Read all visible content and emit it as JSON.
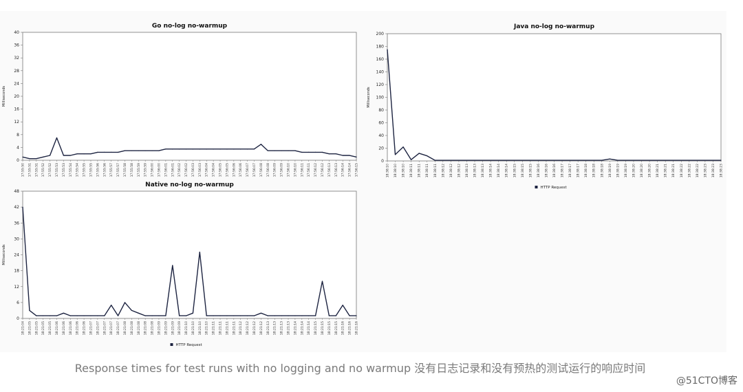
{
  "chart_data": [
    {
      "type": "line",
      "title": "Go no-log no-warmup",
      "ylabel": "Milliseconds",
      "ylim": [
        0,
        40
      ],
      "yticks": [
        0,
        4,
        8,
        12,
        16,
        20,
        24,
        28,
        32,
        36,
        40
      ],
      "x": [
        "17:55:50",
        "17:55:51",
        "17:55:51",
        "17:55:52",
        "17:55:52",
        "17:55:53",
        "17:55:53",
        "17:55:54",
        "17:55:54",
        "17:55:55",
        "17:55:55",
        "17:55:56",
        "17:55:56",
        "17:55:57",
        "17:55:57",
        "17:55:58",
        "17:55:58",
        "17:55:59",
        "17:55:59",
        "17:56:00",
        "17:56:00",
        "17:56:01",
        "17:56:01",
        "17:56:02",
        "17:56:02",
        "17:56:03",
        "17:56:03",
        "17:56:04",
        "17:56:04",
        "17:56:05",
        "17:56:05",
        "17:56:06",
        "17:56:06",
        "17:56:07",
        "17:56:07",
        "17:56:08",
        "17:56:08",
        "17:56:09",
        "17:56:09",
        "17:56:10",
        "17:56:10",
        "17:56:11",
        "17:56:11",
        "17:56:12",
        "17:56:12",
        "17:56:13",
        "17:56:13",
        "17:56:14",
        "17:56:14",
        "17:56:15"
      ],
      "values": [
        1,
        0.5,
        0.5,
        1,
        1.5,
        7,
        1.5,
        1.5,
        2,
        2,
        2,
        2.5,
        2.5,
        2.5,
        2.5,
        3,
        3,
        3,
        3,
        3,
        3,
        3.5,
        3.5,
        3.5,
        3.5,
        3.5,
        3.5,
        3.5,
        3.5,
        3.5,
        3.5,
        3.5,
        3.5,
        3.5,
        3.5,
        5,
        3,
        3,
        3,
        3,
        3,
        2.5,
        2.5,
        2.5,
        2.5,
        2,
        2,
        1.5,
        1.5,
        1
      ]
    },
    {
      "type": "line",
      "title": "Java no-log no-warmup",
      "ylabel": "Milliseconds",
      "ylim": [
        0,
        200
      ],
      "yticks": [
        0,
        20,
        40,
        60,
        80,
        100,
        120,
        140,
        160,
        180,
        200
      ],
      "legend": "HTTP Request",
      "x": [
        "18:38:10",
        "18:38:10",
        "18:38:10",
        "18:38:11",
        "18:38:11",
        "18:38:11",
        "18:38:11",
        "18:38:12",
        "18:38:12",
        "18:38:12",
        "18:38:13",
        "18:38:13",
        "18:38:13",
        "18:38:14",
        "18:38:14",
        "18:38:14",
        "18:38:15",
        "18:38:15",
        "18:38:15",
        "18:38:16",
        "18:38:16",
        "18:38:16",
        "18:38:17",
        "18:38:17",
        "18:38:17",
        "18:38:18",
        "18:38:18",
        "18:38:18",
        "18:38:19",
        "18:38:19",
        "18:38:19",
        "18:38:20",
        "18:38:20",
        "18:38:20",
        "18:38:21",
        "18:38:21",
        "18:38:21",
        "18:38:22",
        "18:38:22",
        "18:38:22",
        "18:38:23",
        "18:38:23",
        "18:38:23"
      ],
      "values": [
        175,
        10,
        22,
        2,
        12,
        8,
        1,
        1,
        1,
        1,
        1,
        1,
        1,
        1,
        1,
        1,
        1,
        1,
        1,
        1,
        1,
        1,
        1,
        1,
        1,
        1,
        1,
        1,
        3,
        1,
        1,
        1,
        1,
        1,
        1,
        1,
        1,
        1,
        1,
        1,
        1,
        1,
        1
      ]
    },
    {
      "type": "line",
      "title": "Native no-log no-warmup",
      "ylabel": "Milliseconds",
      "ylim": [
        0,
        48
      ],
      "yticks": [
        0,
        6,
        12,
        18,
        24,
        30,
        36,
        42,
        48
      ],
      "legend": "HTTP Request",
      "x": [
        "18:21:04",
        "18:21:05",
        "18:21:05",
        "18:21:05",
        "18:21:05",
        "18:21:06",
        "18:21:06",
        "18:21:06",
        "18:21:06",
        "18:21:06",
        "18:21:07",
        "18:21:07",
        "18:21:07",
        "18:21:07",
        "18:21:07",
        "18:21:08",
        "18:21:08",
        "18:21:08",
        "18:21:08",
        "18:21:08",
        "18:21:09",
        "18:21:09",
        "18:21:09",
        "18:21:09",
        "18:21:10",
        "18:21:10",
        "18:21:10",
        "18:21:10",
        "18:21:11",
        "18:21:11",
        "18:21:11",
        "18:21:11",
        "18:21:12",
        "18:21:12",
        "18:21:12",
        "18:21:12",
        "18:21:13",
        "18:21:13",
        "18:21:13",
        "18:21:13",
        "18:21:14",
        "18:21:14",
        "18:21:14",
        "18:21:15",
        "18:21:15",
        "18:21:15",
        "18:21:15",
        "18:21:16",
        "18:21:16",
        "18:21:16"
      ],
      "values": [
        42,
        3,
        1,
        1,
        1,
        1,
        2,
        1,
        1,
        1,
        1,
        1,
        1,
        5,
        1,
        6,
        3,
        2,
        1,
        1,
        1,
        1,
        20,
        1,
        1,
        2,
        25,
        1,
        1,
        1,
        1,
        1,
        1,
        1,
        1,
        2,
        1,
        1,
        1,
        1,
        1,
        1,
        1,
        1,
        14,
        1,
        1,
        5,
        1,
        1
      ]
    }
  ],
  "caption": "Response times for test runs with no logging and no warmup 没有日志记录和没有预热的测试运行的响应时间",
  "watermark": "@51CTO博客",
  "colors": {
    "series": "#1c2340",
    "frame": "#777777"
  }
}
